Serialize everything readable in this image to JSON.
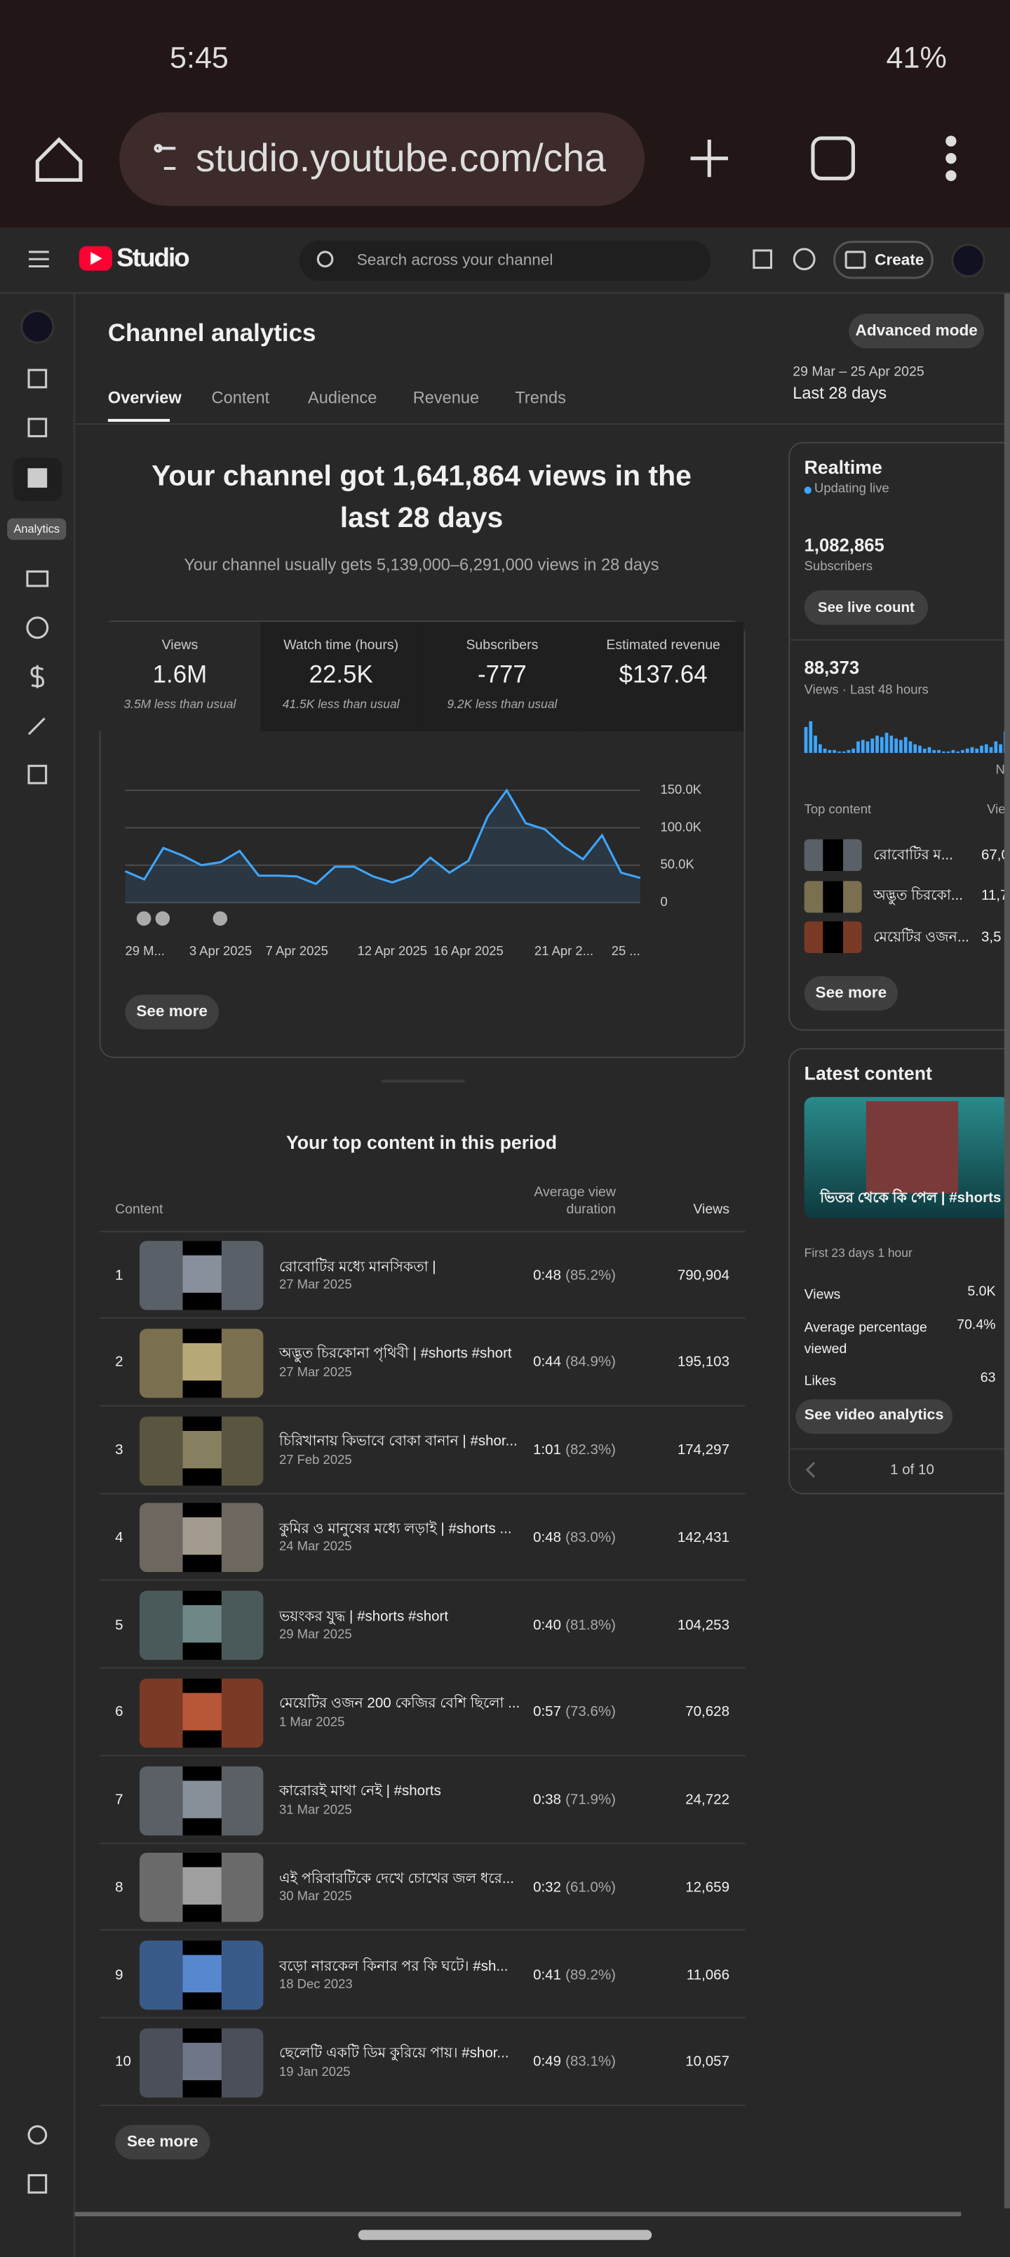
{
  "status_bar": {
    "time": "5:45",
    "battery": "41%"
  },
  "browser": {
    "url": "studio.youtube.com/cha"
  },
  "header": {
    "logo": "Studio",
    "search_placeholder": "Search across your channel",
    "create": "Create"
  },
  "nav": {
    "active_label": "Analytics"
  },
  "page": {
    "title": "Channel analytics",
    "advanced_mode": "Advanced mode",
    "date_range": "29 Mar – 25 Apr 2025",
    "period": "Last 28 days",
    "tabs": [
      "Overview",
      "Content",
      "Audience",
      "Revenue",
      "Trends"
    ],
    "headline": [
      "Your channel got 1,641,864 views in the",
      "last 28 days"
    ],
    "subline": "Your channel usually gets 5,139,000–6,291,000 views in 28 days"
  },
  "stats": [
    {
      "label": "Views",
      "value": "1.6M",
      "note": "3.5M less than usual"
    },
    {
      "label": "Watch time (hours)",
      "value": "22.5K",
      "note": "41.5K less than usual"
    },
    {
      "label": "Subscribers",
      "value": "-777",
      "note": "9.2K less than usual"
    },
    {
      "label": "Estimated revenue",
      "value": "$137.64"
    }
  ],
  "chart_data": {
    "type": "line",
    "categories": [
      "29 M...",
      null,
      null,
      null,
      null,
      "3 Apr 2025",
      null,
      null,
      null,
      "7 Apr 2025",
      null,
      null,
      null,
      null,
      "12 Apr 2025",
      null,
      null,
      null,
      "16 Apr 2025",
      null,
      null,
      null,
      null,
      "21 Apr 2...",
      null,
      null,
      null,
      "25 ..."
    ],
    "series": [
      {
        "name": "Views",
        "color": "#3ea6ff",
        "values": [
          42000,
          31000,
          73000,
          63000,
          50000,
          54000,
          69000,
          36000,
          36000,
          35000,
          25000,
          48000,
          48000,
          35000,
          27000,
          36000,
          60000,
          40000,
          56000,
          115000,
          150000,
          106000,
          98000,
          75000,
          58000,
          90000,
          40000,
          33000
        ]
      }
    ],
    "ylim": [
      0,
      150000
    ],
    "yticks": [
      0,
      {
        "value": 50000,
        "label": "50.0K"
      },
      {
        "value": 100000,
        "label": "100.0K"
      },
      {
        "value": 150000,
        "label": "150.0K"
      }
    ],
    "grid": true
  },
  "overview_see_more": "See more",
  "top_content": {
    "title": "Your top content in this period",
    "columns": [
      "Content",
      "Average view duration",
      "Views"
    ],
    "rows": [
      {
        "rank": 1,
        "title": "রোবোটির মধ্যে মানসিকতা |",
        "date": "27 Mar 2025",
        "duration": "0:48",
        "percent": "(85.2%)",
        "views": "790,904"
      },
      {
        "rank": 2,
        "title": "অদ্ভুত চিরকোনা পৃথিবী | #shorts #short",
        "date": "27 Mar 2025",
        "duration": "0:44",
        "percent": "(84.9%)",
        "views": "195,103"
      },
      {
        "rank": 3,
        "title": "চিরিখানায় কিভাবে বোকা বানান | #shor...",
        "date": "27 Feb 2025",
        "duration": "1:01",
        "percent": "(82.3%)",
        "views": "174,297"
      },
      {
        "rank": 4,
        "title": "কুমির ও মানুষের মধ্যে লড়াই | #shorts ...",
        "date": "24 Mar 2025",
        "duration": "0:48",
        "percent": "(83.0%)",
        "views": "142,431"
      },
      {
        "rank": 5,
        "title": "ভয়ংকর যুদ্ধ | #shorts #short",
        "date": "29 Mar 2025",
        "duration": "0:40",
        "percent": "(81.8%)",
        "views": "104,253"
      },
      {
        "rank": 6,
        "title": "মেয়েটির ওজন 200 কেজির বেশি ছিলো ...",
        "date": "1 Mar 2025",
        "duration": "0:57",
        "percent": "(73.6%)",
        "views": "70,628"
      },
      {
        "rank": 7,
        "title": "কারোরই মাথা নেই | #shorts",
        "date": "31 Mar 2025",
        "duration": "0:38",
        "percent": "(71.9%)",
        "views": "24,722"
      },
      {
        "rank": 8,
        "title": "এই পরিবারটিকে দেখে চোখের জল ধরে...",
        "date": "30 Mar 2025",
        "duration": "0:32",
        "percent": "(61.0%)",
        "views": "12,659"
      },
      {
        "rank": 9,
        "title": "বড়ো নারকেল কিনার পর কি ঘটে। #sh...",
        "date": "18 Dec 2023",
        "duration": "0:41",
        "percent": "(89.2%)",
        "views": "11,066"
      },
      {
        "rank": 10,
        "title": "ছেলেটি একটি ডিম কুরিয়ে পায়। #shor...",
        "date": "19 Jan 2025",
        "duration": "0:49",
        "percent": "(83.1%)",
        "views": "10,057"
      }
    ],
    "see_more": "See more"
  },
  "realtime": {
    "title": "Realtime",
    "status": "Updating live",
    "subscribers": "1,082,865",
    "subscribers_label": "Subscribers",
    "live_count": "See live count",
    "views": "88,373",
    "views_label": "Views · Last 48 hours",
    "bars": {
      "values": [
        18,
        22,
        12,
        6,
        3,
        2,
        2,
        1,
        1,
        2,
        3,
        8,
        9,
        8,
        10,
        12,
        11,
        14,
        12,
        10,
        9,
        11,
        8,
        6,
        5,
        3,
        4,
        2,
        2,
        1,
        1,
        2,
        1,
        2,
        3,
        4,
        3,
        5,
        6,
        4,
        8,
        6,
        15
      ],
      "ylim": [
        0,
        24
      ],
      "color": "#3ea6ff"
    },
    "axis_cut": "N",
    "top_content_label": "Top content",
    "views_column": "Vie",
    "top": [
      {
        "title": "রোবোটির ম...",
        "views": "67,0"
      },
      {
        "title": "অদ্ভুত চিরকো...",
        "views": "11,7"
      },
      {
        "title": "মেয়েটির ওজন...",
        "views": "3,5"
      }
    ],
    "see_more": "See more"
  },
  "latest_content": {
    "title": "Latest content",
    "video_title": "ভিতর থেকে কি পেল | #shorts",
    "age": "First 23 days 1 hour",
    "metrics": [
      {
        "label": "Views",
        "value": "5.0K"
      },
      {
        "label": "Average percentage viewed",
        "value": "70.4%"
      },
      {
        "label": "Likes",
        "value": "63"
      }
    ],
    "button": "See video analytics",
    "pager": "1 of 10"
  }
}
